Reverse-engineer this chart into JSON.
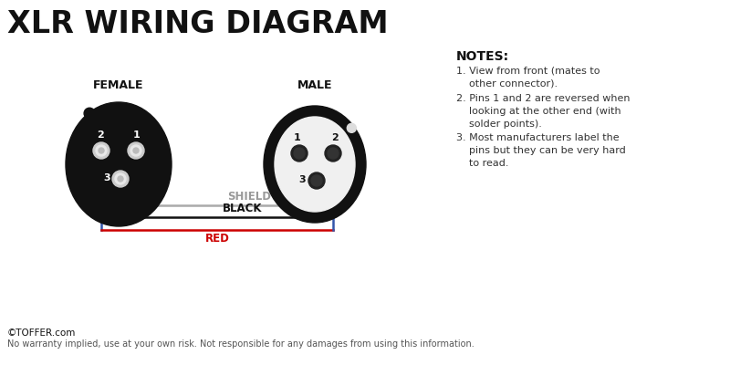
{
  "title": "XLR WIRING DIAGRAM",
  "title_fontsize": 24,
  "title_fontweight": "bold",
  "bg_color": "#ffffff",
  "female_label": "FEMALE",
  "male_label": "MALE",
  "notes_title": "NOTES:",
  "notes": [
    "View from front (mates to\nother connector).",
    "Pins 1 and 2 are reversed when\nlooking at the other end (with\nsolder points).",
    "Most manufacturers label the\npins but they can be very hard\nto read."
  ],
  "footer_line1": "©TOFFER.com",
  "footer_line2": "No warranty implied, use at your own risk. Not responsible for any damages from using this information.",
  "wire_labels": [
    "SHIELD",
    "BLACK",
    "RED"
  ],
  "wire_colors": [
    "#aaaaaa",
    "#111111",
    "#cc0000"
  ],
  "blue_wire_color": "#3355aa",
  "connector_color": "#111111"
}
